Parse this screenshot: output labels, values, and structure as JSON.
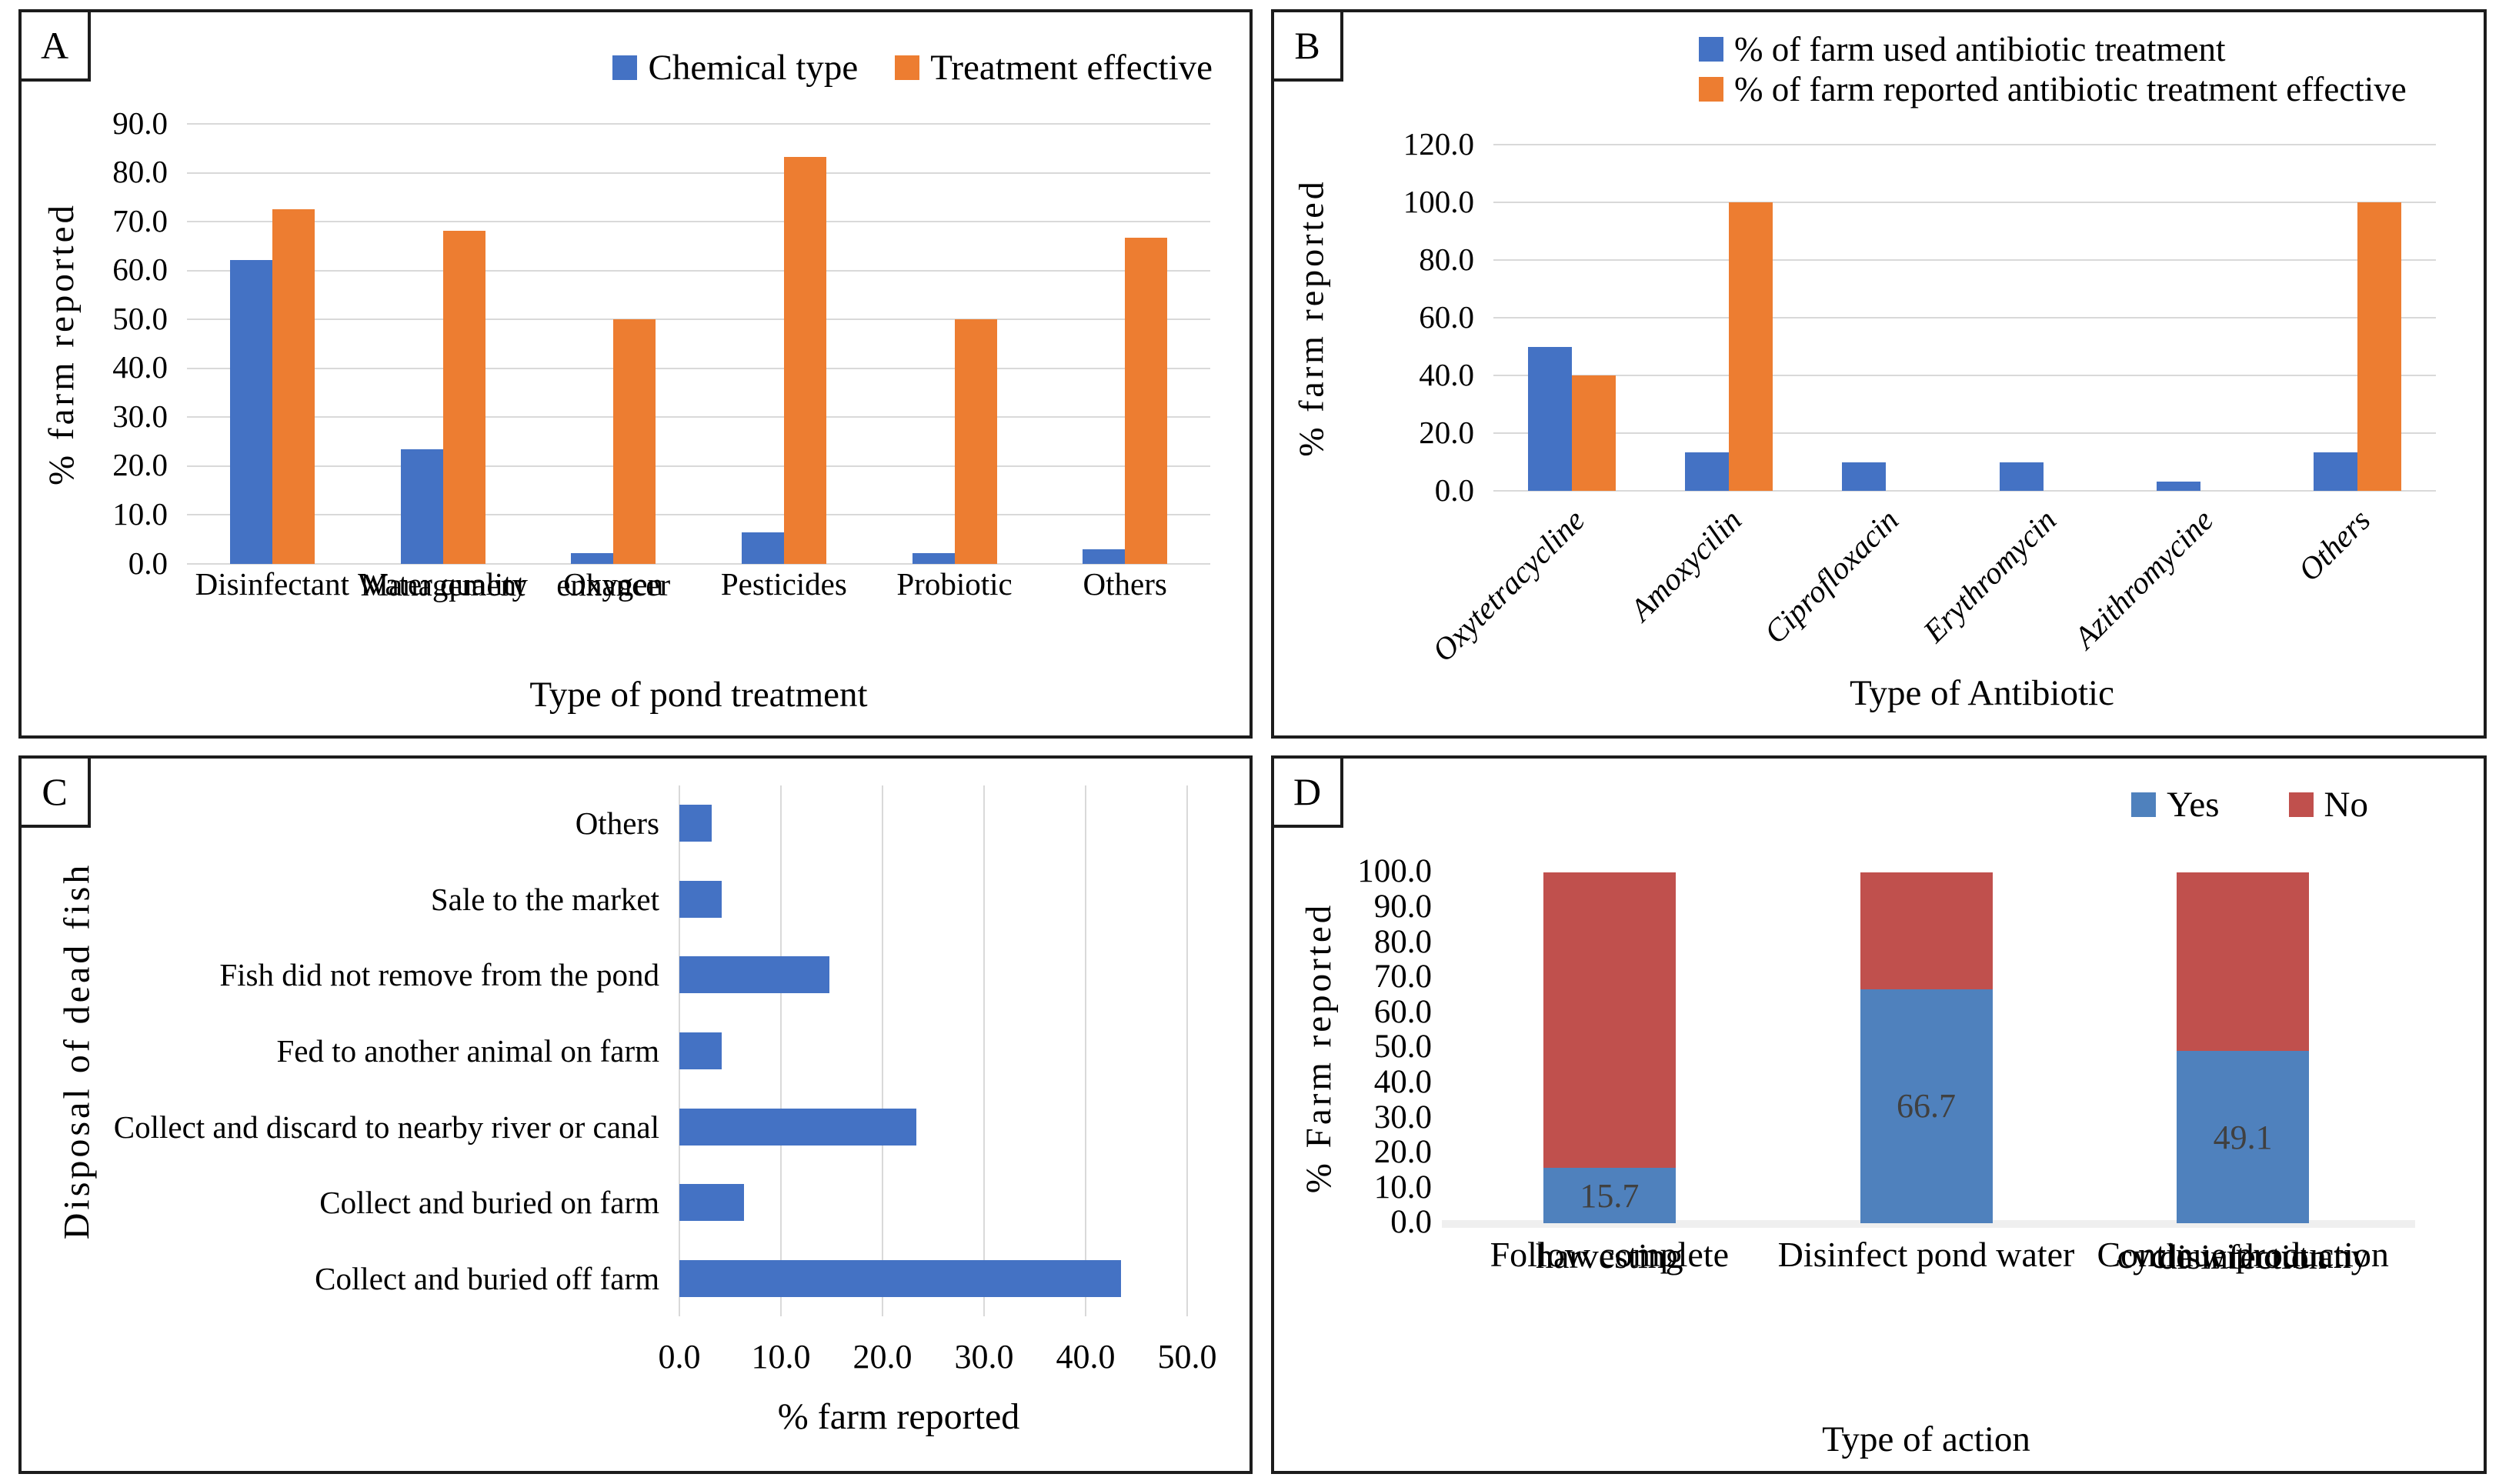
{
  "figure": {
    "background": "#ffffff",
    "border_color": "#1c1c1c",
    "grid_color": "#D9D9D9"
  },
  "chart_data": [
    {
      "panel": "A",
      "type": "bar",
      "title": "",
      "categories": [
        "Disinfectant",
        "Water quality\nManagement",
        "Oxygen\nenhancer",
        "Pesticides",
        "Probiotic",
        "Others"
      ],
      "series": [
        {
          "name": "Chemical type",
          "color": "#4472C4",
          "values": [
            62.2,
            23.5,
            2.2,
            6.5,
            2.2,
            3.0
          ]
        },
        {
          "name": "Treatment effective",
          "color": "#ED7D31",
          "values": [
            72.5,
            68.2,
            50.0,
            83.3,
            50.0,
            66.7
          ]
        }
      ],
      "xlabel": "Type of pond treatment",
      "ylabel": "% farm reported",
      "ylim": [
        0,
        90
      ],
      "yticks": [
        "0.0",
        "10.0",
        "20.0",
        "30.0",
        "40.0",
        "50.0",
        "60.0",
        "70.0",
        "80.0",
        "90.0"
      ],
      "grid": true,
      "legend_position": "top-right"
    },
    {
      "panel": "B",
      "type": "bar",
      "title": "",
      "categories": [
        "Oxytetracycline",
        "Amoxycilin",
        "Ciprofloxacin",
        "Erythromycin",
        "Azithromycine",
        "Others"
      ],
      "categories_italic": true,
      "series": [
        {
          "name": "% of farm used antibiotic treatment",
          "color": "#4472C4",
          "values": [
            50.0,
            13.3,
            10.0,
            10.0,
            3.3,
            13.3
          ]
        },
        {
          "name": "% of farm reported antibiotic treatment effective",
          "color": "#ED7D31",
          "values": [
            40.0,
            100.0,
            0.0,
            0.0,
            0.0,
            100.0
          ]
        }
      ],
      "xlabel": "Type of Antibiotic",
      "ylabel": "% farm reported",
      "ylim": [
        0,
        120
      ],
      "yticks": [
        "0.0",
        "20.0",
        "40.0",
        "60.0",
        "80.0",
        "100.0",
        "120.0"
      ],
      "grid": true,
      "legend_position": "top-right-stacked"
    },
    {
      "panel": "C",
      "type": "bar-horizontal",
      "title": "",
      "categories": [
        "Others",
        "Sale to the market",
        "Fish did not remove from the pond",
        "Fed to another animal on farm",
        "Collect and discard to nearby river or canal",
        "Collect and buried on farm",
        "Collect and buried off farm"
      ],
      "values": [
        3.2,
        4.2,
        14.8,
        4.2,
        23.3,
        6.4,
        43.5
      ],
      "bar_color": "#4472C4",
      "xlabel": "% farm reported",
      "ylabel": "Disposal of dead fish",
      "xlim": [
        0,
        50
      ],
      "xticks": [
        "0.0",
        "10.0",
        "20.0",
        "30.0",
        "40.0",
        "50.0"
      ],
      "grid": true
    },
    {
      "panel": "D",
      "type": "bar-stacked",
      "title": "",
      "categories": [
        "Follow complete\nharvesting",
        "Disinfect pond water",
        "Continue production\ncycle without any\ndisinfection"
      ],
      "series": [
        {
          "name": "Yes",
          "color": "#4F81BD",
          "values": [
            15.7,
            66.7,
            49.1
          ]
        },
        {
          "name": "No",
          "color": "#C0504D",
          "values": [
            84.3,
            33.3,
            50.9
          ]
        }
      ],
      "data_labels": [
        "15.7",
        "66.7",
        "49.1"
      ],
      "data_label_color": "#404040",
      "xlabel": "Type of action",
      "ylabel": "% Farm reported",
      "ylim": [
        0,
        100
      ],
      "yticks": [
        "0.0",
        "10.0",
        "20.0",
        "30.0",
        "40.0",
        "50.0",
        "60.0",
        "70.0",
        "80.0",
        "90.0",
        "100.0"
      ],
      "grid": false,
      "baseline_strip_color": "#EFEFEF",
      "legend_position": "top-right"
    }
  ]
}
